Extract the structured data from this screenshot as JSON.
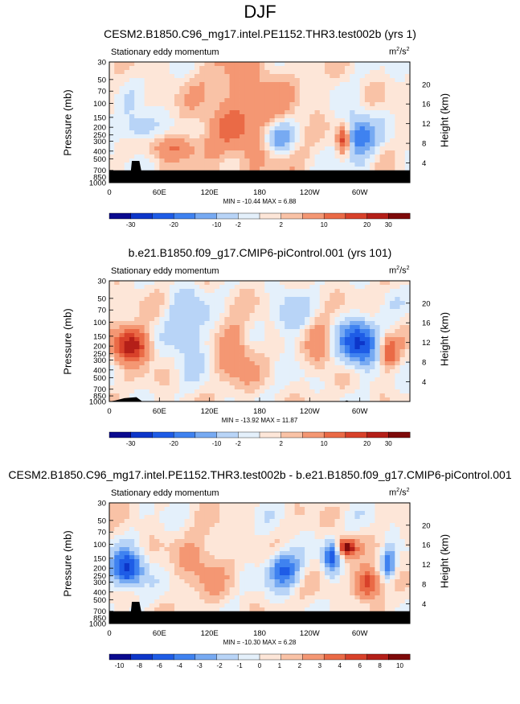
{
  "main_title": "DJF",
  "units_base": "m",
  "units_sup1": "2",
  "units_mid": "/s",
  "units_sup2": "2",
  "palette": [
    "#0a0a8f",
    "#0d36c9",
    "#1e5ce6",
    "#3f82f0",
    "#77aaf2",
    "#b8d4f7",
    "#e4f0fb",
    "#fde6d8",
    "#f9c2a6",
    "#f49773",
    "#ea6a46",
    "#d8412a",
    "#b41f18",
    "#7e0a0a"
  ],
  "chart_data": [
    {
      "type": "heatmap",
      "title": "CESM2.B1850.C96_mg17.intel.PE1152.THR3.test002b (yrs 1)",
      "subtitle": "Stationary eddy momentum",
      "ylabel": "Pressure (mb)",
      "y2label": "Height (km)",
      "y_ticks": [
        "30",
        "50",
        "70",
        "100",
        "150",
        "200",
        "250",
        "300",
        "400",
        "500",
        "700",
        "850",
        "1000"
      ],
      "y2_ticks": [
        "20",
        "16",
        "12",
        "8",
        "4"
      ],
      "x_ticks": [
        "0",
        "60E",
        "120E",
        "180",
        "120W",
        "60W"
      ],
      "min": -10.44,
      "max": 6.88,
      "stats": "MIN = -10.44   MAX =   6.88",
      "cbar_labels": [
        "-30",
        "-20",
        "-10",
        "-2",
        "2",
        "10",
        "20",
        "30"
      ],
      "blobs": [
        [
          0.56,
          0.63,
          0.05,
          0.13,
          -0.75
        ],
        [
          0.83,
          0.62,
          0.05,
          0.18,
          -0.9
        ],
        [
          0.78,
          0.64,
          0.02,
          0.12,
          1.0
        ],
        [
          0.1,
          0.55,
          0.06,
          0.14,
          -0.5
        ],
        [
          0.45,
          0.45,
          0.15,
          0.5,
          0.5
        ],
        [
          0.2,
          0.7,
          0.1,
          0.1,
          0.45
        ]
      ],
      "terrain": [
        [
          0,
          0.06
        ],
        [
          0.02,
          0.06
        ],
        [
          0.07,
          0.06
        ],
        [
          0.075,
          0.2
        ],
        [
          0.1,
          0.2
        ],
        [
          0.11,
          0.06
        ],
        [
          0.25,
          0.06
        ],
        [
          0.6,
          0.06
        ],
        [
          1,
          0.06
        ]
      ]
    },
    {
      "type": "heatmap",
      "title": "b.e21.B1850.f09_g17.CMIP6-piControl.001 (yrs 101)",
      "subtitle": "Stationary eddy momentum",
      "ylabel": "Pressure (mb)",
      "y2label": "Height (km)",
      "y_ticks": [
        "30",
        "50",
        "70",
        "100",
        "150",
        "200",
        "250",
        "300",
        "400",
        "500",
        "700",
        "850",
        "1000"
      ],
      "y2_ticks": [
        "20",
        "16",
        "12",
        "8",
        "4"
      ],
      "x_ticks": [
        "0",
        "60E",
        "120E",
        "180",
        "120W",
        "60W"
      ],
      "min": -13.92,
      "max": 11.87,
      "stats": "MIN = -13.92   MAX = 11.87",
      "cbar_labels": [
        "-30",
        "-20",
        "-10",
        "-2",
        "2",
        "10",
        "20",
        "30"
      ],
      "blobs": [
        [
          0.07,
          0.53,
          0.06,
          0.14,
          1.2
        ],
        [
          0.83,
          0.52,
          0.06,
          0.18,
          -1.3
        ],
        [
          0.93,
          0.6,
          0.03,
          0.12,
          0.8
        ],
        [
          0.26,
          0.4,
          0.06,
          0.3,
          -0.5
        ],
        [
          0.42,
          0.6,
          0.06,
          0.25,
          0.5
        ],
        [
          0.7,
          0.55,
          0.04,
          0.2,
          0.4
        ],
        [
          0.6,
          0.3,
          0.05,
          0.2,
          -0.35
        ]
      ],
      "terrain": [
        [
          0,
          0.0
        ],
        [
          0.02,
          0.01
        ],
        [
          0.05,
          0.03
        ],
        [
          0.09,
          0.04
        ],
        [
          0.11,
          0.0
        ],
        [
          0.78,
          0.0
        ],
        [
          0.79,
          0.01
        ],
        [
          0.8,
          0.0
        ],
        [
          1,
          0.0
        ]
      ]
    },
    {
      "type": "heatmap",
      "title": "CESM2.B1850.C96_mg17.intel.PE1152.THR3.test002b - b.e21.B1850.f09_g17.CMIP6-piControl.001",
      "subtitle": "Stationary eddy momentum",
      "ylabel": "Pressure (mb)",
      "y2label": "Height (km)",
      "y_ticks": [
        "30",
        "50",
        "70",
        "100",
        "150",
        "200",
        "250",
        "300",
        "400",
        "500",
        "700",
        "850",
        "1000"
      ],
      "y2_ticks": [
        "20",
        "16",
        "12",
        "8",
        "4"
      ],
      "x_ticks": [
        "0",
        "60E",
        "120E",
        "180",
        "120W",
        "60W"
      ],
      "min": -10.3,
      "max": 6.28,
      "stats": "MIN = -10.30   MAX =   6.28",
      "cbar_labels": [
        "-10",
        "-8",
        "-6",
        "-4",
        "-3",
        "-2",
        "-1",
        "0",
        "1",
        "2",
        "3",
        "4",
        "6",
        "8",
        "10"
      ],
      "blobs": [
        [
          0.06,
          0.55,
          0.05,
          0.14,
          -1.4
        ],
        [
          0.58,
          0.55,
          0.05,
          0.14,
          -1.0
        ],
        [
          0.74,
          0.45,
          0.025,
          0.13,
          -1.0
        ],
        [
          0.79,
          0.37,
          0.03,
          0.07,
          1.4
        ],
        [
          0.86,
          0.67,
          0.04,
          0.12,
          1.1
        ],
        [
          0.93,
          0.5,
          0.02,
          0.12,
          -0.9
        ],
        [
          0.31,
          0.5,
          0.08,
          0.25,
          0.35
        ]
      ],
      "terrain": [
        [
          0,
          0.06
        ],
        [
          0.02,
          0.06
        ],
        [
          0.07,
          0.06
        ],
        [
          0.075,
          0.2
        ],
        [
          0.1,
          0.2
        ],
        [
          0.11,
          0.06
        ],
        [
          0.25,
          0.06
        ],
        [
          0.6,
          0.06
        ],
        [
          1,
          0.06
        ]
      ]
    }
  ]
}
